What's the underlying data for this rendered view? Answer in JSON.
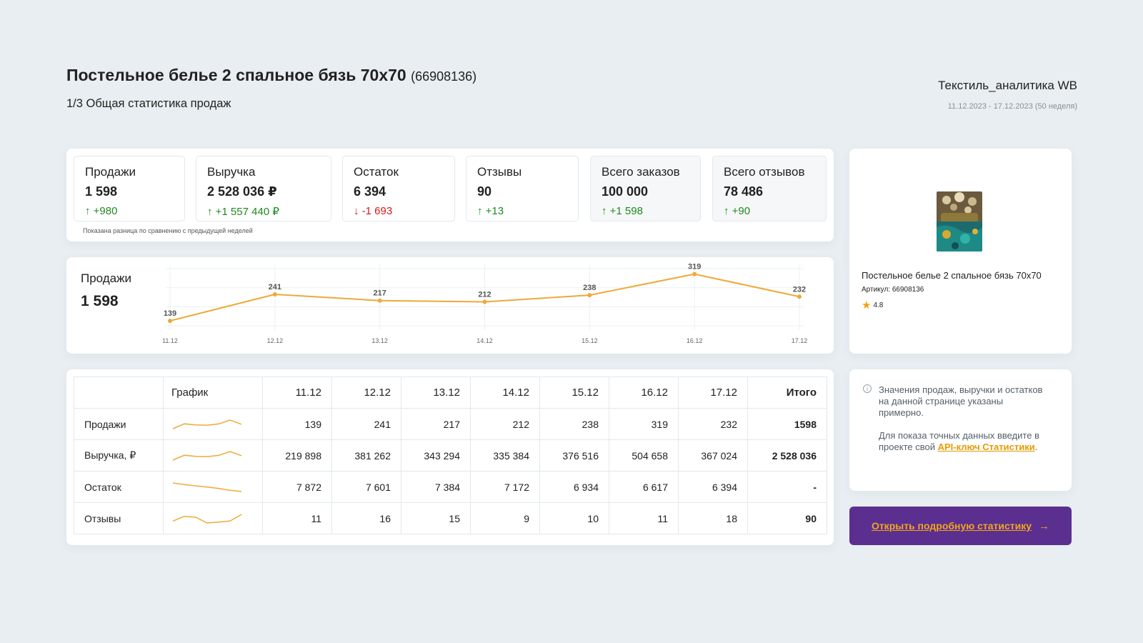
{
  "header": {
    "title": "Постельное белье 2 спальное бязь 70х70",
    "sku": "(66908136)",
    "subtitle": "1/3 Общая статистика продаж",
    "brand": "Текстиль_аналитика WB",
    "period": "11.12.2023 - 17.12.2023 (50 неделя)"
  },
  "kpis": [
    {
      "label": "Продажи",
      "value": "1 598",
      "delta": "↑ +980",
      "trend": "up"
    },
    {
      "label": "Выручка",
      "value": "2 528 036 ₽",
      "delta": "↑ +1 557 440 ₽",
      "trend": "up"
    },
    {
      "label": "Остаток",
      "value": "6 394",
      "delta": "↓ -1 693",
      "trend": "down"
    },
    {
      "label": "Отзывы",
      "value": "90",
      "delta": "↑ +13",
      "trend": "up"
    },
    {
      "label": "Всего заказов",
      "value": "100 000",
      "delta": "↑ +1 598",
      "trend": "up"
    },
    {
      "label": "Всего отзывов",
      "value": "78 486",
      "delta": "↑ +90",
      "trend": "up"
    }
  ],
  "kpi_note": "Показана разница по сравнению с предыдущей неделей",
  "sales_chart": {
    "label": "Продажи",
    "value": "1 598"
  },
  "chart_data": {
    "type": "line",
    "categories": [
      "11.12",
      "12.12",
      "13.12",
      "14.12",
      "15.12",
      "16.12",
      "17.12"
    ],
    "series": [
      {
        "values": [
          139,
          241,
          217,
          212,
          238,
          319,
          232
        ]
      }
    ],
    "ylim": [
      120,
      340
    ],
    "grid": true,
    "color": "#eea938"
  },
  "table": {
    "headers": [
      "",
      "График",
      "11.12",
      "12.12",
      "13.12",
      "14.12",
      "15.12",
      "16.12",
      "17.12",
      "Итого"
    ],
    "rows": [
      {
        "label": "Продажи",
        "values": [
          "139",
          "241",
          "217",
          "212",
          "238",
          "319",
          "232"
        ],
        "total": "1598",
        "spark": [
          139,
          241,
          217,
          212,
          238,
          319,
          232
        ]
      },
      {
        "label": "Выручка, ₽",
        "values": [
          "219 898",
          "381 262",
          "343 294",
          "335 384",
          "376 516",
          "504 658",
          "367 024"
        ],
        "total": "2 528 036",
        "spark": [
          219898,
          381262,
          343294,
          335384,
          376516,
          504658,
          367024
        ]
      },
      {
        "label": "Остаток",
        "values": [
          "7 872",
          "7 601",
          "7 384",
          "7 172",
          "6 934",
          "6 617",
          "6 394"
        ],
        "total": "-",
        "spark": [
          7872,
          7601,
          7384,
          7172,
          6934,
          6617,
          6394
        ]
      },
      {
        "label": "Отзывы",
        "values": [
          "11",
          "16",
          "15",
          "9",
          "10",
          "11",
          "18"
        ],
        "total": "90",
        "spark": [
          11,
          16,
          15,
          9,
          10,
          11,
          18
        ]
      }
    ]
  },
  "product": {
    "name": "Постельное белье 2 спальное бязь 70х70",
    "article": "Артикул: 66908136",
    "rating": "4.8"
  },
  "note": {
    "text1": "Значения продаж, выручки и остатков на данной странице указаны примерно.",
    "text2": "Для показа точных данных введите в проекте свой",
    "link": "API-ключ Статистики",
    "tail": "."
  },
  "cta": {
    "label": "Открыть подробную статистику",
    "arrow": "→"
  }
}
